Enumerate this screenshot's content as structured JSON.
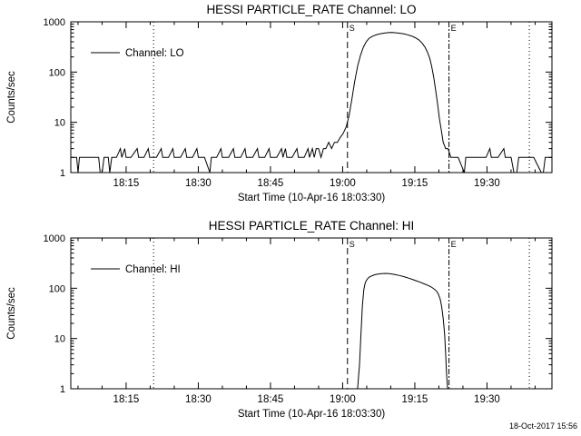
{
  "page": {
    "background": "#ffffff",
    "foreground": "#000000",
    "timestamp": "18-Oct-2017 15:56"
  },
  "chart_data": [
    {
      "type": "line",
      "panel": "LO",
      "title": "HESSI PARTICLE_RATE Channel: LO",
      "xlabel": "Start Time (10-Apr-16 18:03:30)",
      "ylabel": "Counts/sec",
      "yscale": "log",
      "ylim": [
        1,
        1000
      ],
      "yticks": [
        {
          "v": 1,
          "label": "1"
        },
        {
          "v": 10,
          "label": "10"
        },
        {
          "v": 100,
          "label": "100"
        },
        {
          "v": 1000,
          "label": "1000"
        }
      ],
      "x_unit": "minutes_after_18:03:30",
      "xlim": [
        0,
        100
      ],
      "x_minor_step": 5,
      "xticks": [
        {
          "t": 11.5,
          "label": "18:15"
        },
        {
          "t": 26.5,
          "label": "18:30"
        },
        {
          "t": 41.5,
          "label": "18:45"
        },
        {
          "t": 56.5,
          "label": "19:00"
        },
        {
          "t": 71.5,
          "label": "19:15"
        },
        {
          "t": 86.5,
          "label": "19:30"
        }
      ],
      "vlines": [
        {
          "t": 17.2,
          "style": "dotted",
          "label": ""
        },
        {
          "t": 57.5,
          "style": "dashed",
          "label": "S"
        },
        {
          "t": 78.6,
          "style": "dashdot",
          "label": "E"
        },
        {
          "t": 95.3,
          "style": "dotted",
          "label": ""
        }
      ],
      "legend": {
        "label": "Channel: LO",
        "position": "upper-left-inside"
      },
      "grid": false,
      "series": [
        {
          "name": "Channel: LO",
          "color": "#000000",
          "points": [
            [
              0,
              2
            ],
            [
              1.2,
              2
            ],
            [
              1.5,
              1
            ],
            [
              1.8,
              2
            ],
            [
              3,
              2
            ],
            [
              4.5,
              2
            ],
            [
              5.8,
              2
            ],
            [
              6.1,
              1
            ],
            [
              6.5,
              1
            ],
            [
              6.9,
              2
            ],
            [
              7.8,
              2
            ],
            [
              8.1,
              1
            ],
            [
              8.5,
              2
            ],
            [
              9.5,
              2
            ],
            [
              10.3,
              3
            ],
            [
              10.6,
              2
            ],
            [
              11.2,
              3
            ],
            [
              11.5,
              2
            ],
            [
              12.5,
              2
            ],
            [
              13.8,
              3
            ],
            [
              14.1,
              2
            ],
            [
              15.2,
              2
            ],
            [
              16.1,
              3
            ],
            [
              16.4,
              2
            ],
            [
              17.8,
              2
            ],
            [
              18.8,
              3
            ],
            [
              19.1,
              2
            ],
            [
              20.3,
              2
            ],
            [
              21.2,
              3
            ],
            [
              21.5,
              2
            ],
            [
              22.8,
              2
            ],
            [
              23.8,
              3
            ],
            [
              24.1,
              2
            ],
            [
              25.3,
              2
            ],
            [
              26.2,
              3
            ],
            [
              26.5,
              2
            ],
            [
              27.8,
              2
            ],
            [
              28.9,
              1
            ],
            [
              29.2,
              2
            ],
            [
              30.3,
              2
            ],
            [
              31.2,
              3
            ],
            [
              31.5,
              2
            ],
            [
              32.8,
              2
            ],
            [
              33.8,
              3
            ],
            [
              34.1,
              2
            ],
            [
              35.3,
              2
            ],
            [
              36.2,
              3
            ],
            [
              36.5,
              2
            ],
            [
              37.8,
              2
            ],
            [
              38.8,
              3
            ],
            [
              39.1,
              2
            ],
            [
              40.3,
              2
            ],
            [
              41.2,
              3
            ],
            [
              41.5,
              2
            ],
            [
              42.8,
              2
            ],
            [
              43.8,
              3
            ],
            [
              44.1,
              2
            ],
            [
              44.6,
              3
            ],
            [
              44.9,
              2
            ],
            [
              46,
              2
            ],
            [
              47,
              3
            ],
            [
              47.3,
              2
            ],
            [
              48.5,
              2
            ],
            [
              49.3,
              3
            ],
            [
              49.6,
              2
            ],
            [
              50.2,
              3
            ],
            [
              50.6,
              2
            ],
            [
              51,
              3
            ],
            [
              51.5,
              3
            ],
            [
              52,
              2
            ],
            [
              52.5,
              3
            ],
            [
              53,
              3
            ],
            [
              53.6,
              4
            ],
            [
              54.2,
              3
            ],
            [
              54.8,
              4
            ],
            [
              55.4,
              4
            ],
            [
              56,
              5
            ],
            [
              56.6,
              6
            ],
            [
              57.2,
              8
            ],
            [
              57.8,
              13
            ],
            [
              58.4,
              28
            ],
            [
              59,
              65
            ],
            [
              59.6,
              130
            ],
            [
              60.2,
              215
            ],
            [
              60.8,
              310
            ],
            [
              61.4,
              400
            ],
            [
              62,
              470
            ],
            [
              62.8,
              520
            ],
            [
              63.6,
              555
            ],
            [
              64.4,
              580
            ],
            [
              65.2,
              598
            ],
            [
              66,
              610
            ],
            [
              66.8,
              612
            ],
            [
              67.6,
              605
            ],
            [
              68.4,
              592
            ],
            [
              69.2,
              575
            ],
            [
              70,
              552
            ],
            [
              70.8,
              522
            ],
            [
              71.6,
              482
            ],
            [
              72.4,
              432
            ],
            [
              73,
              378
            ],
            [
              73.6,
              315
            ],
            [
              74.1,
              252
            ],
            [
              74.6,
              188
            ],
            [
              75,
              130
            ],
            [
              75.4,
              82
            ],
            [
              75.8,
              46
            ],
            [
              76.2,
              24
            ],
            [
              76.6,
              12
            ],
            [
              77,
              7
            ],
            [
              77.4,
              4
            ],
            [
              77.9,
              3
            ],
            [
              78.4,
              3
            ],
            [
              79,
              2
            ],
            [
              80.5,
              2
            ],
            [
              81.8,
              1
            ],
            [
              82.1,
              2
            ],
            [
              83.5,
              2
            ],
            [
              85,
              2
            ],
            [
              86.3,
              2
            ],
            [
              87.1,
              3
            ],
            [
              87.4,
              2
            ],
            [
              88.8,
              2
            ],
            [
              90,
              3
            ],
            [
              90.3,
              2
            ],
            [
              91.5,
              2
            ],
            [
              92.1,
              1
            ],
            [
              92.7,
              1
            ],
            [
              93.1,
              2
            ],
            [
              94.5,
              2
            ],
            [
              96.2,
              2
            ],
            [
              97.8,
              1
            ],
            [
              98.2,
              1
            ],
            [
              98.6,
              2
            ],
            [
              100,
              2
            ]
          ]
        }
      ]
    },
    {
      "type": "line",
      "panel": "HI",
      "title": "HESSI PARTICLE_RATE Channel: HI",
      "xlabel": "Start Time (10-Apr-16 18:03:30)",
      "ylabel": "Counts/sec",
      "yscale": "log",
      "ylim": [
        1,
        1000
      ],
      "yticks": [
        {
          "v": 1,
          "label": "1"
        },
        {
          "v": 10,
          "label": "10"
        },
        {
          "v": 100,
          "label": "100"
        },
        {
          "v": 1000,
          "label": "1000"
        }
      ],
      "x_unit": "minutes_after_18:03:30",
      "xlim": [
        0,
        100
      ],
      "x_minor_step": 5,
      "xticks": [
        {
          "t": 11.5,
          "label": "18:15"
        },
        {
          "t": 26.5,
          "label": "18:30"
        },
        {
          "t": 41.5,
          "label": "18:45"
        },
        {
          "t": 56.5,
          "label": "19:00"
        },
        {
          "t": 71.5,
          "label": "19:15"
        },
        {
          "t": 86.5,
          "label": "19:30"
        }
      ],
      "vlines": [
        {
          "t": 17.2,
          "style": "dotted",
          "label": ""
        },
        {
          "t": 57.5,
          "style": "dashed",
          "label": "S"
        },
        {
          "t": 78.6,
          "style": "dashdot",
          "label": "E"
        },
        {
          "t": 95.3,
          "style": "dotted",
          "label": ""
        }
      ],
      "legend": {
        "label": "Channel: HI",
        "position": "upper-left-inside"
      },
      "grid": false,
      "series": [
        {
          "name": "Channel: HI",
          "color": "#000000",
          "points": [
            [
              0,
              1
            ],
            [
              8,
              1
            ],
            [
              16,
              1
            ],
            [
              24,
              1
            ],
            [
              32,
              1
            ],
            [
              40,
              1
            ],
            [
              48,
              1
            ],
            [
              54,
              1
            ],
            [
              57.5,
              1
            ],
            [
              59,
              1
            ],
            [
              59.6,
              1
            ],
            [
              60,
              3
            ],
            [
              60.3,
              12
            ],
            [
              60.6,
              45
            ],
            [
              60.9,
              95
            ],
            [
              61.2,
              130
            ],
            [
              61.6,
              152
            ],
            [
              62,
              166
            ],
            [
              62.6,
              177
            ],
            [
              63.2,
              186
            ],
            [
              63.8,
              192
            ],
            [
              64.6,
              196
            ],
            [
              65.4,
              197
            ],
            [
              66.2,
              195
            ],
            [
              67,
              190
            ],
            [
              67.8,
              184
            ],
            [
              68.6,
              176
            ],
            [
              69.4,
              168
            ],
            [
              70.2,
              159
            ],
            [
              71,
              150
            ],
            [
              71.8,
              141
            ],
            [
              72.6,
              132
            ],
            [
              73.4,
              123
            ],
            [
              74.2,
              114
            ],
            [
              74.9,
              106
            ],
            [
              75.5,
              97
            ],
            [
              76,
              88
            ],
            [
              76.4,
              76
            ],
            [
              76.8,
              60
            ],
            [
              77.1,
              42
            ],
            [
              77.4,
              25
            ],
            [
              77.7,
              12
            ],
            [
              77.9,
              5
            ],
            [
              78.1,
              2
            ],
            [
              78.3,
              1
            ],
            [
              80,
              1
            ],
            [
              84,
              1
            ],
            [
              88,
              1
            ],
            [
              92,
              1
            ],
            [
              96,
              1
            ],
            [
              100,
              1
            ]
          ]
        }
      ]
    }
  ]
}
